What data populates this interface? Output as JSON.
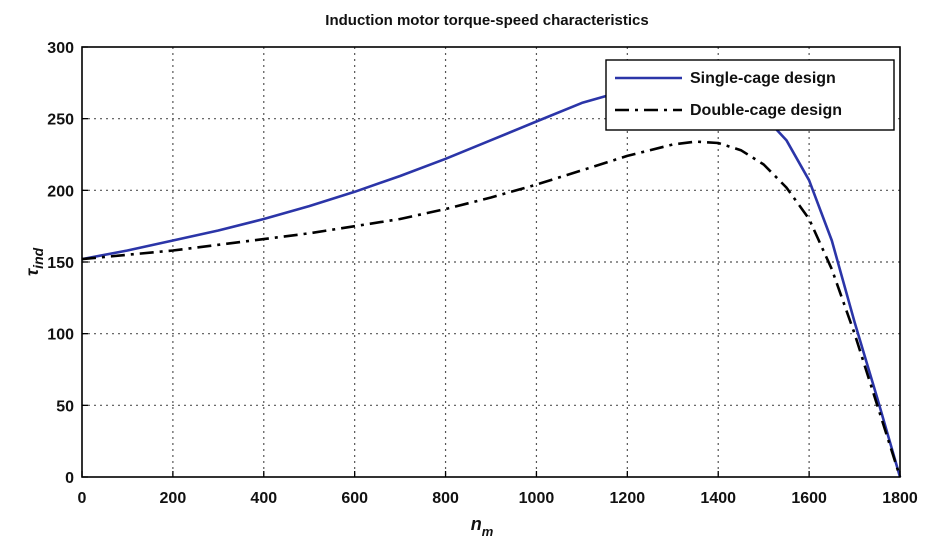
{
  "chart_data": {
    "type": "line",
    "title": "Induction motor torque-speed characteristics",
    "xlabel": "n_m",
    "xlabel_main": "n",
    "xlabel_sub": "m",
    "ylabel": "τ_ind",
    "ylabel_main": "τ",
    "ylabel_sub": "ind",
    "xlim": [
      0,
      1800
    ],
    "ylim": [
      0,
      300
    ],
    "xticks": [
      0,
      200,
      400,
      600,
      800,
      1000,
      1200,
      1400,
      1600,
      1800
    ],
    "yticks": [
      0,
      50,
      100,
      150,
      200,
      250,
      300
    ],
    "grid": true,
    "legend_position": "top-right",
    "series": [
      {
        "name": "Single-cage design",
        "color": "#2b35a8",
        "line_style": "solid",
        "x": [
          0,
          100,
          200,
          300,
          400,
          500,
          600,
          700,
          800,
          900,
          1000,
          1100,
          1200,
          1250,
          1300,
          1350,
          1400,
          1450,
          1500,
          1550,
          1600,
          1650,
          1700,
          1750,
          1800
        ],
        "y": [
          152,
          158,
          165,
          172,
          180,
          189,
          199,
          210,
          222,
          235,
          248,
          261,
          270,
          272,
          272,
          270,
          266,
          261,
          252,
          235,
          207,
          165,
          108,
          55,
          0
        ]
      },
      {
        "name": "Double-cage design",
        "color": "#000000",
        "line_style": "dash-dot",
        "x": [
          0,
          100,
          200,
          300,
          400,
          500,
          600,
          700,
          800,
          900,
          1000,
          1100,
          1200,
          1300,
          1350,
          1400,
          1450,
          1500,
          1550,
          1600,
          1650,
          1700,
          1750,
          1800
        ],
        "y": [
          152,
          155,
          158,
          162,
          166,
          170,
          175,
          180,
          187,
          195,
          204,
          214,
          224,
          232,
          234,
          233,
          228,
          218,
          202,
          180,
          145,
          100,
          50,
          0
        ]
      }
    ]
  }
}
